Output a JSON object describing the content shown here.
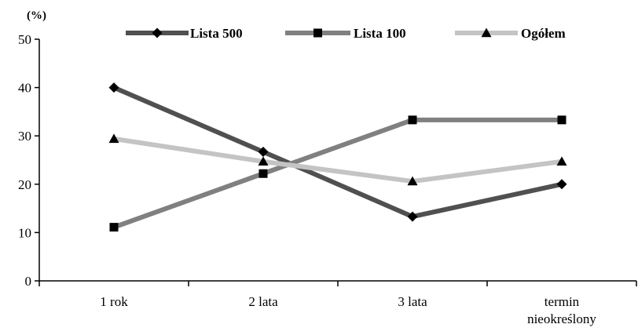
{
  "chart_data": {
    "type": "line",
    "ylabel": "(%)",
    "xlabel": "",
    "ylim": [
      0,
      50
    ],
    "yticks": [
      0,
      10,
      20,
      30,
      40,
      50
    ],
    "grid": false,
    "legend_position": "top",
    "categories": [
      "1 rok",
      "2 lata",
      "3 lata",
      [
        "termin",
        "nieokreślony"
      ]
    ],
    "series": [
      {
        "name": "Lista 500",
        "values": [
          40,
          26.7,
          13.3,
          20
        ],
        "color": "#505050",
        "marker": "diamond"
      },
      {
        "name": "Lista 100",
        "values": [
          11.1,
          22.2,
          33.3,
          33.3
        ],
        "color": "#808080",
        "marker": "square"
      },
      {
        "name": "Ogółem",
        "values": [
          29.4,
          24.7,
          20.6,
          24.7
        ],
        "color": "#c4c4c4",
        "marker": "triangle"
      }
    ]
  }
}
